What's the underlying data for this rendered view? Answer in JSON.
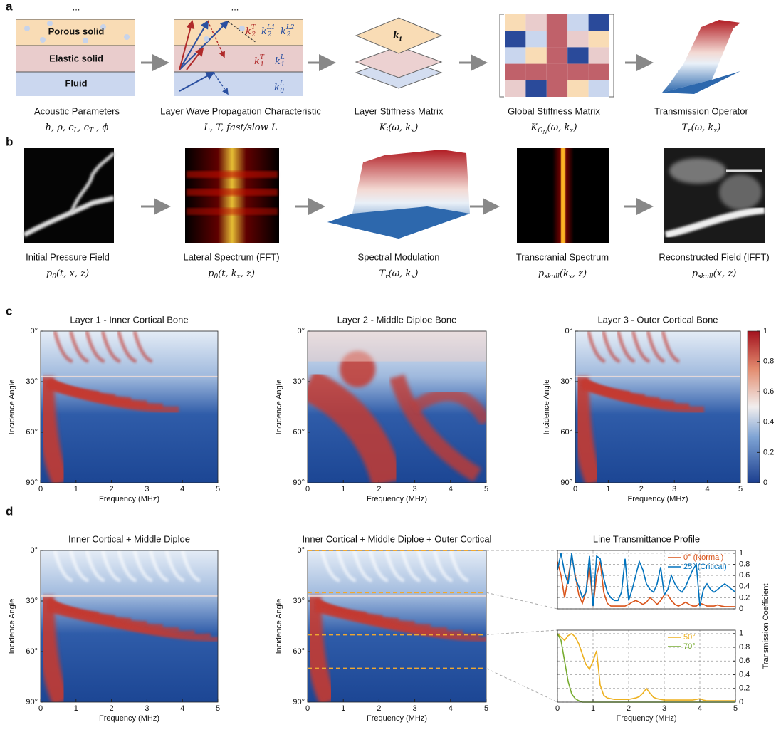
{
  "panel_labels": [
    "a",
    "b",
    "c",
    "d"
  ],
  "panel_a": {
    "ellipsis": "...",
    "layers": [
      "Porous solid",
      "Elastic solid",
      "Fluid"
    ],
    "wave_labels": [
      [
        "k",
        {
          "sub": "2",
          "sup": "T"
        }
      ],
      [
        "k",
        {
          "sub": "2",
          "sup": "L1"
        }
      ],
      [
        "k",
        {
          "sub": "2",
          "sup": "L2"
        }
      ],
      [
        "k",
        {
          "sub": "1",
          "sup": "T"
        }
      ],
      [
        "k",
        {
          "sub": "1",
          "sup": "L"
        }
      ],
      [
        "k",
        {
          "sub": "0",
          "sup": "L"
        }
      ]
    ],
    "plate_label": [
      "k",
      {
        "sub": "i"
      }
    ],
    "steps": [
      {
        "title": "Acoustic Parameters",
        "formula": [
          "h, ρ, c",
          {
            "sub": "L"
          },
          ", c",
          {
            "sub": "T"
          },
          " , ϕ"
        ]
      },
      {
        "title": "Layer Wave Propagation Characteristic",
        "formula": [
          "L, T, fast/slow L"
        ]
      },
      {
        "title": "Layer Stiffness Matrix",
        "formula": [
          "K",
          {
            "sub": "i"
          },
          "(ω, k",
          {
            "sub": "x"
          },
          ")"
        ]
      },
      {
        "title": "Global Stiffness Matrix",
        "formula": [
          "K",
          {
            "sub": "G"
          },
          {
            "subsub": "N"
          },
          "(ω, k",
          {
            "sub": "x"
          },
          ")"
        ]
      },
      {
        "title": "Transmission Operator",
        "formula": [
          "T",
          {
            "sub": "r"
          },
          "(ω, k",
          {
            "sub": "x"
          },
          ")"
        ]
      }
    ]
  },
  "panel_b": {
    "steps": [
      {
        "title": "Initial Pressure Field",
        "formula": [
          "p",
          {
            "sub": "0"
          },
          "(t, x, z)"
        ]
      },
      {
        "title": "Lateral Spectrum (FFT)",
        "formula": [
          "p",
          {
            "sub": "0"
          },
          "(t, k",
          {
            "sub": "x"
          },
          ", z)"
        ]
      },
      {
        "title": "Spectral Modulation",
        "formula": [
          "T",
          {
            "sub": "r"
          },
          "(ω, k",
          {
            "sub": "x"
          },
          ")"
        ]
      },
      {
        "title": "Transcranial Spectrum",
        "formula": [
          "p",
          {
            "sub": "skull"
          },
          "(k",
          {
            "sub": "x"
          },
          ", z)"
        ]
      },
      {
        "title": "Reconstructed Field (IFFT)",
        "formula": [
          "p",
          {
            "sub": "skull"
          },
          "(x, z)"
        ]
      }
    ]
  },
  "chart_data": [
    {
      "type": "heatmap",
      "title": "Layer 1 - Inner Cortical Bone",
      "xlabel": "Frequency (MHz)",
      "ylabel": "Incidence Angle",
      "xlim": [
        0,
        5
      ],
      "xticks": [
        0,
        1,
        2,
        3,
        4,
        5
      ],
      "ylim": [
        90,
        0
      ],
      "yticks": [
        {
          "value": 0,
          "label": "0°"
        },
        {
          "value": 30,
          "label": "30°"
        },
        {
          "value": 60,
          "label": "60°"
        },
        {
          "value": 90,
          "label": "90°"
        }
      ]
    },
    {
      "type": "heatmap",
      "title": "Layer 2 - Middle Diploe Bone",
      "xlabel": "Frequency (MHz)",
      "ylabel": "Incidence Angle",
      "xlim": [
        0,
        5
      ],
      "xticks": [
        0,
        1,
        2,
        3,
        4,
        5
      ],
      "ylim": [
        90,
        0
      ],
      "yticks": [
        {
          "value": 0,
          "label": "0°"
        },
        {
          "value": 30,
          "label": "30°"
        },
        {
          "value": 60,
          "label": "60°"
        },
        {
          "value": 90,
          "label": "90°"
        }
      ]
    },
    {
      "type": "heatmap",
      "title": "Layer 3 - Outer Cortical Bone",
      "xlabel": "Frequency (MHz)",
      "ylabel": "Incidence Angle",
      "xlim": [
        0,
        5
      ],
      "xticks": [
        0,
        1,
        2,
        3,
        4,
        5
      ],
      "ylim": [
        90,
        0
      ],
      "yticks": [
        {
          "value": 0,
          "label": "0°"
        },
        {
          "value": 30,
          "label": "30°"
        },
        {
          "value": 60,
          "label": "60°"
        },
        {
          "value": 90,
          "label": "90°"
        }
      ],
      "colorbar": {
        "lim": [
          0,
          1
        ],
        "ticks": [
          0,
          0.2,
          0.4,
          0.6,
          0.8,
          1
        ]
      }
    },
    {
      "type": "heatmap",
      "title": "Inner Cortical + Middle Diploe",
      "xlabel": "Frequency (MHz)",
      "ylabel": "Incidence Angle",
      "xlim": [
        0,
        5
      ],
      "xticks": [
        0,
        1,
        2,
        3,
        4,
        5
      ],
      "ylim": [
        90,
        0
      ],
      "yticks": [
        {
          "value": 0,
          "label": "0°"
        },
        {
          "value": 30,
          "label": "30°"
        },
        {
          "value": 60,
          "label": "60°"
        },
        {
          "value": 90,
          "label": "90°"
        }
      ]
    },
    {
      "type": "heatmap",
      "title": "Inner Cortical + Middle Diploe + Outer Cortical",
      "xlabel": "Frequency (MHz)",
      "ylabel": "Incidence Angle",
      "xlim": [
        0,
        5
      ],
      "xticks": [
        0,
        1,
        2,
        3,
        4,
        5
      ],
      "ylim": [
        90,
        0
      ],
      "yticks": [
        {
          "value": 0,
          "label": "0°"
        },
        {
          "value": 30,
          "label": "30°"
        },
        {
          "value": 60,
          "label": "60°"
        },
        {
          "value": 90,
          "label": "90°"
        }
      ],
      "highlight_angles": [
        0,
        25,
        50,
        70
      ],
      "highlight_color": "#f0a830"
    },
    {
      "type": "line",
      "title": "Line Transmittance Profile",
      "ylabel": "Transmission Coefficient",
      "legend": "upper right",
      "grid": true,
      "xlim": [
        0,
        5
      ],
      "ylim": [
        0,
        1.05
      ],
      "yticks": [
        0,
        0.2,
        0.4,
        0.6,
        0.8,
        1
      ],
      "x": [
        0,
        0.1,
        0.2,
        0.3,
        0.4,
        0.5,
        0.6,
        0.7,
        0.8,
        0.9,
        1,
        1.1,
        1.2,
        1.3,
        1.4,
        1.5,
        1.6,
        1.7,
        1.8,
        1.9,
        2,
        2.1,
        2.2,
        2.3,
        2.4,
        2.5,
        2.6,
        2.7,
        2.8,
        2.9,
        3,
        3.1,
        3.2,
        3.3,
        3.4,
        3.5,
        3.6,
        3.7,
        3.8,
        3.9,
        4,
        4.1,
        4.2,
        4.3,
        4.4,
        4.5,
        4.6,
        4.7,
        4.8,
        4.9,
        5
      ],
      "series": [
        {
          "name": "0° (Normal)",
          "color": "#d95319",
          "values": [
            0.85,
            0.6,
            0.2,
            0.55,
            0.95,
            0.6,
            0.25,
            0.1,
            0.3,
            0.75,
            0.05,
            0.6,
            0.85,
            0.3,
            0.1,
            0.05,
            0.05,
            0.05,
            0.05,
            0.05,
            0.08,
            0.12,
            0.15,
            0.12,
            0.08,
            0.12,
            0.2,
            0.15,
            0.08,
            0.15,
            0.25,
            0.25,
            0.15,
            0.08,
            0.05,
            0.08,
            0.12,
            0.08,
            0.05,
            0.05,
            0.1,
            0.08,
            0.05,
            0.05,
            0.05,
            0.07,
            0.05,
            0.04,
            0.04,
            0.04,
            0.04
          ]
        },
        {
          "name": "25° (Critical)",
          "color": "#0072bd",
          "values": [
            0.7,
            1,
            0.65,
            0.45,
            1,
            0.55,
            0.4,
            0.2,
            0.3,
            0.95,
            0.05,
            0.95,
            0.9,
            0.55,
            0.3,
            0.2,
            0.15,
            0.15,
            0.3,
            0.9,
            0.15,
            0.35,
            0.6,
            0.85,
            0.7,
            0.45,
            0.35,
            0.3,
            0.45,
            0.75,
            0.25,
            0.35,
            0.6,
            0.45,
            0.35,
            0.3,
            0.4,
            0.55,
            0.7,
            0.8,
            0.05,
            0.35,
            0.45,
            0.35,
            0.3,
            0.35,
            0.4,
            0.45,
            0.4,
            0.35,
            0.3
          ]
        }
      ]
    },
    {
      "type": "line",
      "xlabel": "Frequency (MHz)",
      "legend": "upper right",
      "grid": true,
      "xlim": [
        0,
        5
      ],
      "xticks": [
        0,
        1,
        2,
        3,
        4,
        5
      ],
      "ylim": [
        0,
        1.05
      ],
      "yticks": [
        0,
        0.2,
        0.4,
        0.6,
        0.8,
        1
      ],
      "x": [
        0,
        0.1,
        0.2,
        0.3,
        0.4,
        0.5,
        0.6,
        0.7,
        0.8,
        0.9,
        1,
        1.1,
        1.2,
        1.3,
        1.4,
        1.5,
        1.6,
        1.7,
        1.8,
        1.9,
        2,
        2.1,
        2.2,
        2.3,
        2.4,
        2.5,
        2.6,
        2.7,
        2.8,
        2.9,
        3,
        3.1,
        3.2,
        3.3,
        3.4,
        3.5,
        3.6,
        3.7,
        3.8,
        3.9,
        4,
        4.1,
        4.2,
        4.3,
        4.4,
        4.5,
        4.6,
        4.7,
        4.8,
        4.9,
        5
      ],
      "series": [
        {
          "name": "50°",
          "color": "#edb120",
          "values": [
            1,
            0.95,
            0.9,
            0.97,
            1,
            0.95,
            0.85,
            0.7,
            0.55,
            0.48,
            0.6,
            0.75,
            0.25,
            0.1,
            0.06,
            0.05,
            0.04,
            0.04,
            0.04,
            0.04,
            0.04,
            0.05,
            0.06,
            0.08,
            0.13,
            0.2,
            0.13,
            0.07,
            0.05,
            0.04,
            0.03,
            0.03,
            0.03,
            0.03,
            0.03,
            0.03,
            0.03,
            0.03,
            0.03,
            0.04,
            0.05,
            0.03,
            0.02,
            0.02,
            0.02,
            0.02,
            0.02,
            0.02,
            0.02,
            0.02,
            0.02
          ]
        },
        {
          "name": "70°",
          "color": "#77ac30",
          "values": [
            1,
            0.9,
            0.6,
            0.3,
            0.12,
            0.05,
            0.02,
            0,
            0,
            0,
            0,
            0,
            0,
            0,
            0,
            0,
            0,
            0,
            0,
            0,
            0,
            0,
            0,
            0,
            0,
            0,
            0,
            0,
            0,
            0,
            0,
            0,
            0,
            0,
            0,
            0,
            0,
            0,
            0,
            0,
            0,
            0,
            0,
            0,
            0,
            0,
            0,
            0,
            0,
            0,
            0
          ]
        }
      ]
    }
  ]
}
